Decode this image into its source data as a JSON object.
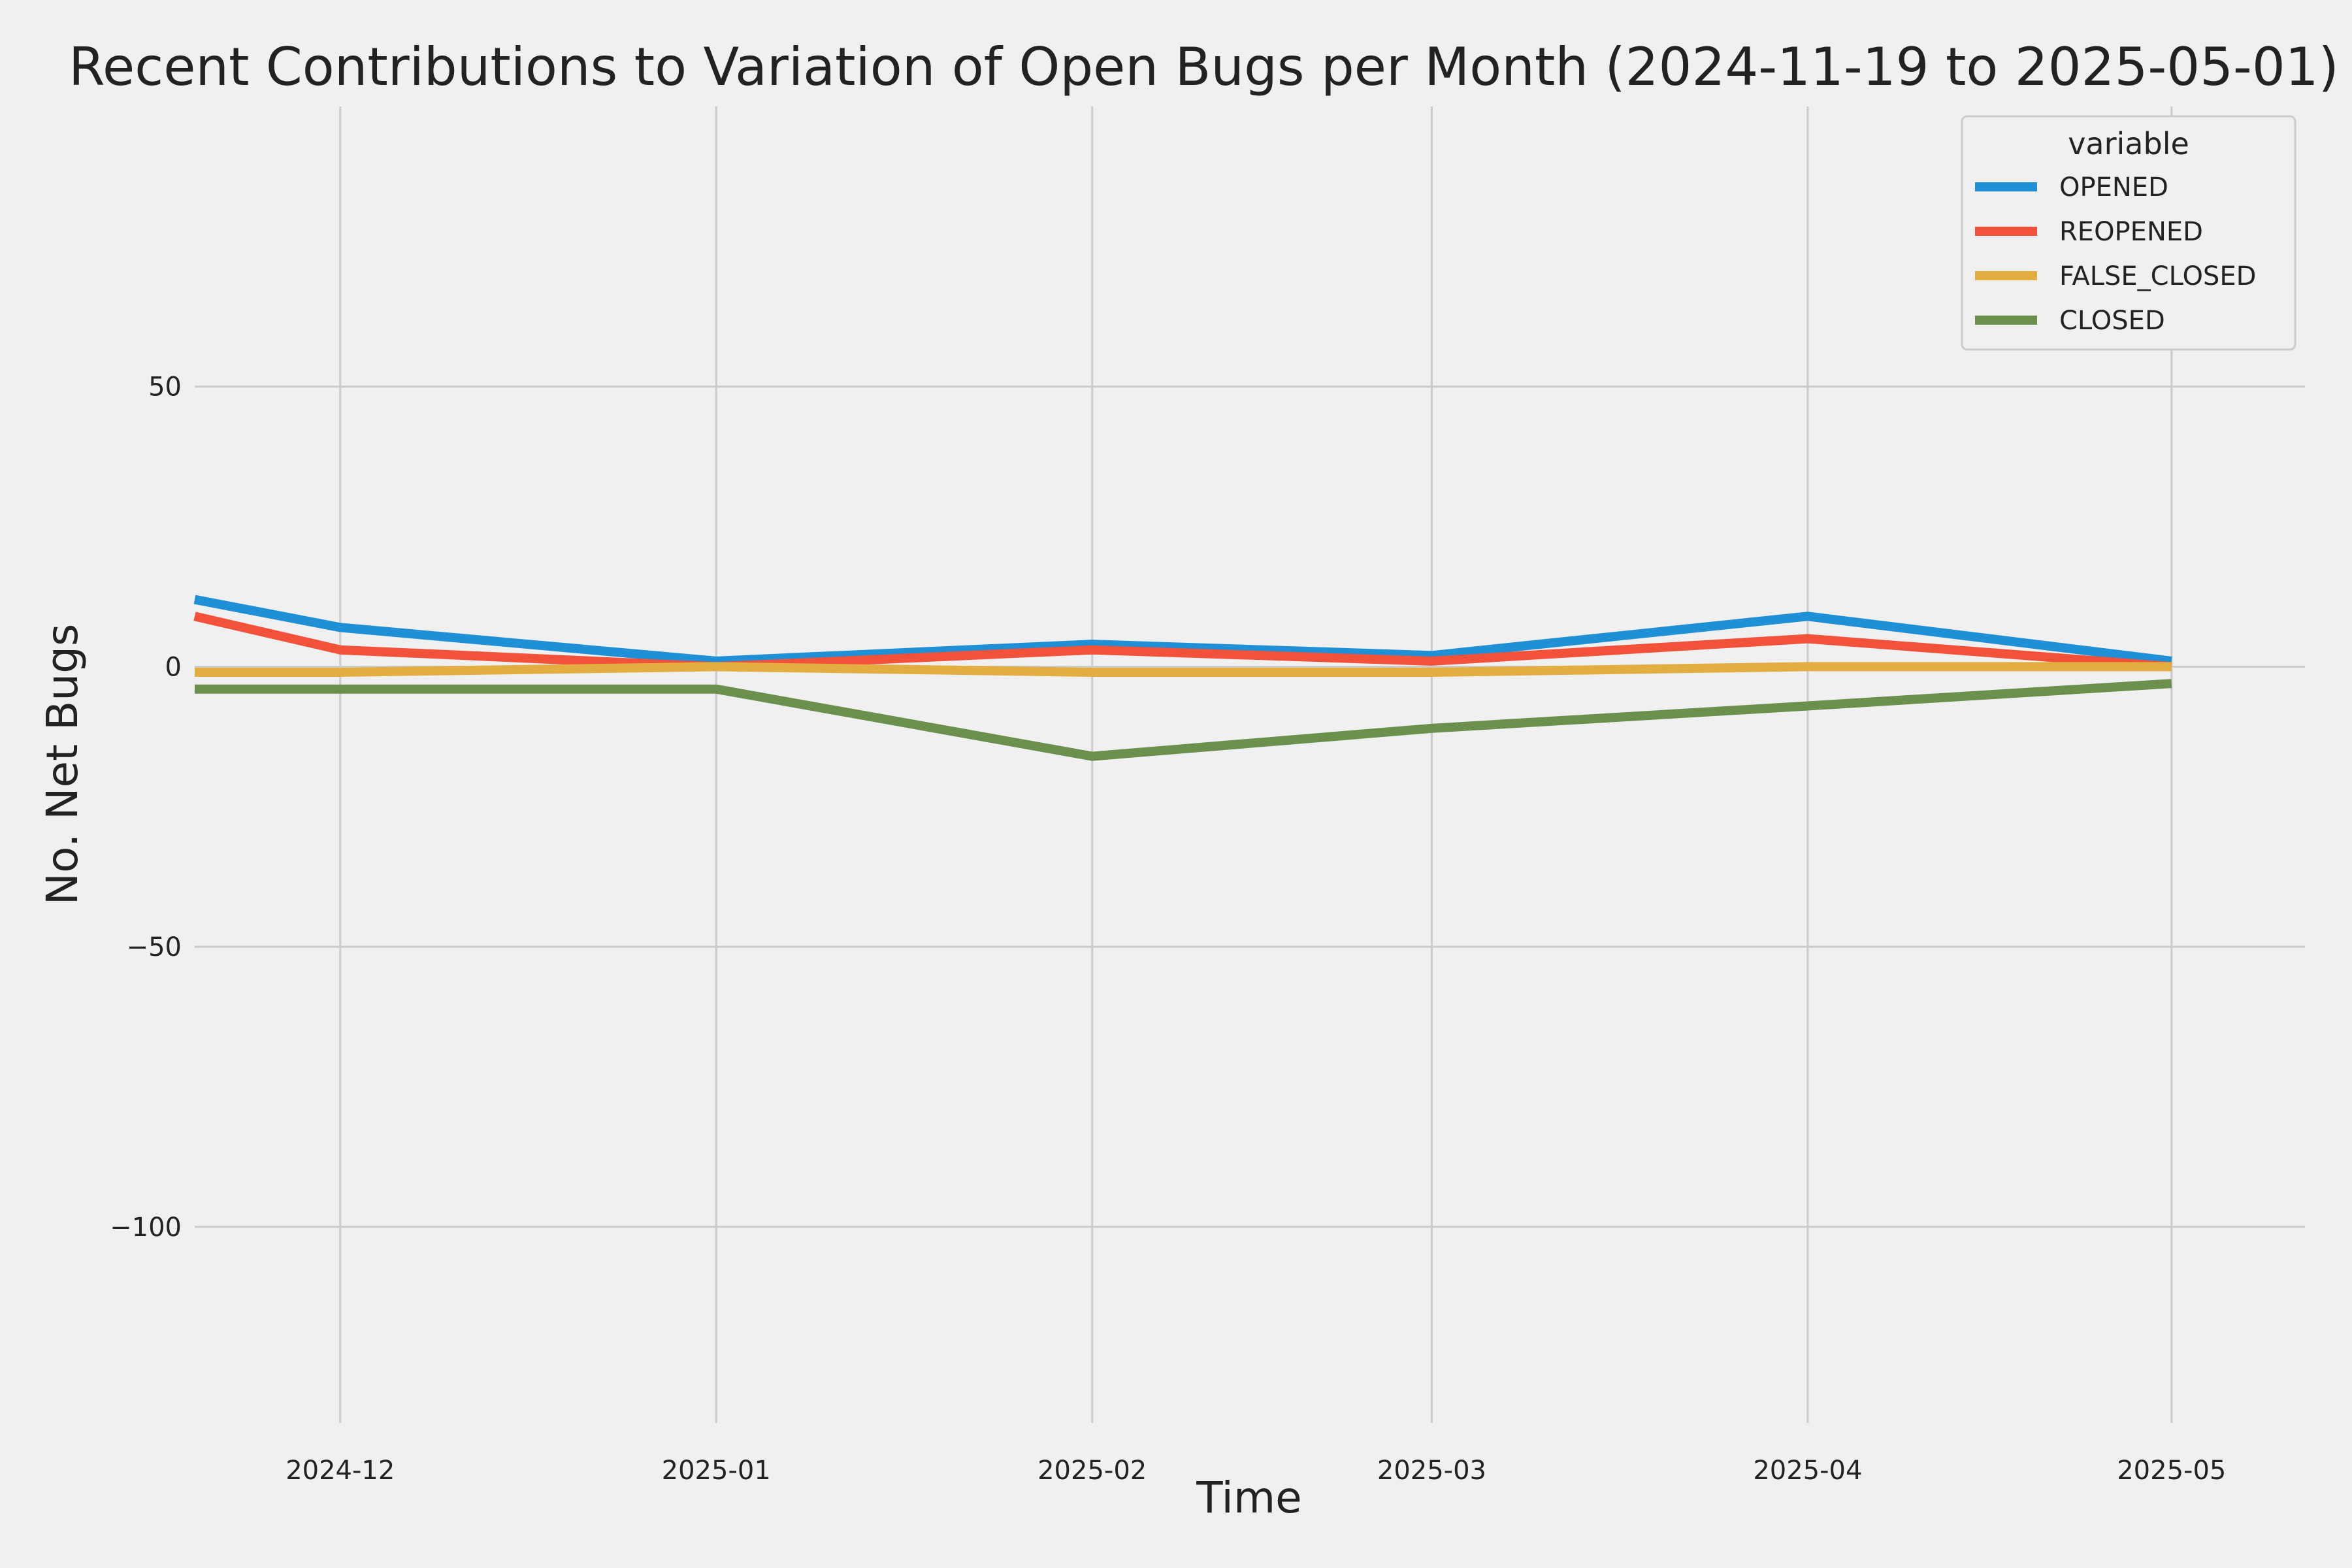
{
  "chart_data": {
    "type": "line",
    "title": "Recent Contributions to Variation of Open Bugs per Month (2024-11-19 to 2025-05-01)",
    "xlabel": "Time",
    "ylabel": "No. Net Bugs",
    "x": [
      "2024-11-19",
      "2024-12-01",
      "2025-01-01",
      "2025-02-01",
      "2025-03-01",
      "2025-04-01",
      "2025-05-01"
    ],
    "xticks": [
      "2024-12",
      "2025-01",
      "2025-02",
      "2025-03",
      "2025-04",
      "2025-05"
    ],
    "xtick_dates": [
      "2024-12-01",
      "2025-01-01",
      "2025-02-01",
      "2025-03-01",
      "2025-04-01",
      "2025-05-01"
    ],
    "xlim": [
      "2024-11-19",
      "2025-05-12"
    ],
    "ylim": [
      -135,
      100
    ],
    "yticks": [
      50,
      0,
      -50,
      -100
    ],
    "ytick_labels": [
      "50",
      "0",
      "−50",
      "−100"
    ],
    "grid": true,
    "legend": {
      "title": "variable",
      "position": "upper right"
    },
    "series": [
      {
        "name": "OPENED",
        "color": "#1f8fd6",
        "values": [
          12,
          7,
          1,
          4,
          2,
          9,
          1
        ]
      },
      {
        "name": "REOPENED",
        "color": "#f2513a",
        "values": [
          9,
          3,
          0,
          3,
          1,
          5,
          0
        ]
      },
      {
        "name": "FALSE_CLOSED",
        "color": "#e3ae41",
        "values": [
          -1,
          -1,
          0,
          -1,
          -1,
          0,
          0
        ]
      },
      {
        "name": "CLOSED",
        "color": "#6b8f4d",
        "values": [
          -4,
          -4,
          -4,
          -16,
          -11,
          -7,
          -3
        ]
      }
    ]
  }
}
